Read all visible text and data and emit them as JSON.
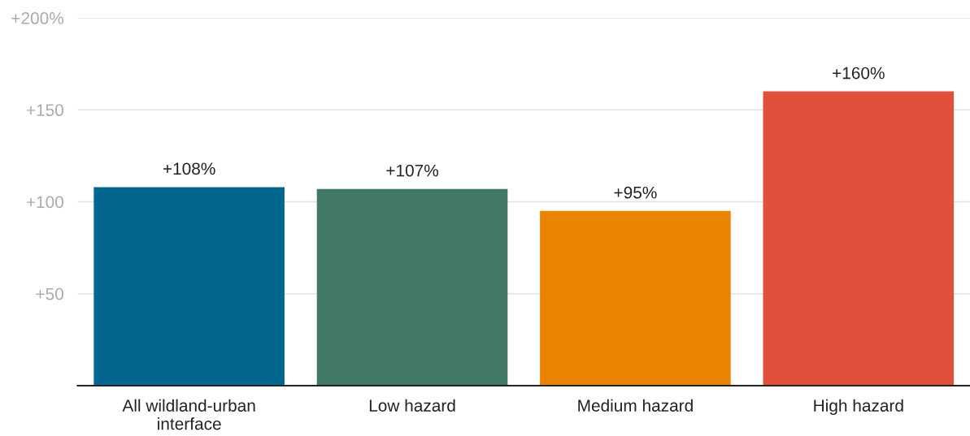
{
  "chart_data": {
    "type": "bar",
    "categories": [
      "All wildland-urban interface",
      "Low hazard",
      "Medium hazard",
      "High hazard"
    ],
    "values": [
      108,
      107,
      95,
      160
    ],
    "colors": [
      "#02668f",
      "#417866",
      "#e98300",
      "#e0503a"
    ],
    "value_labels": [
      "+108%",
      "+107%",
      "+95%",
      "+160%"
    ],
    "ylim": [
      0,
      200
    ],
    "yticks": [
      {
        "value": 0,
        "label": null
      },
      {
        "value": 50,
        "label": "+50"
      },
      {
        "value": 100,
        "label": "+100"
      },
      {
        "value": 150,
        "label": "+150"
      },
      {
        "value": 200,
        "label": "+200%"
      }
    ],
    "grid": "y"
  }
}
